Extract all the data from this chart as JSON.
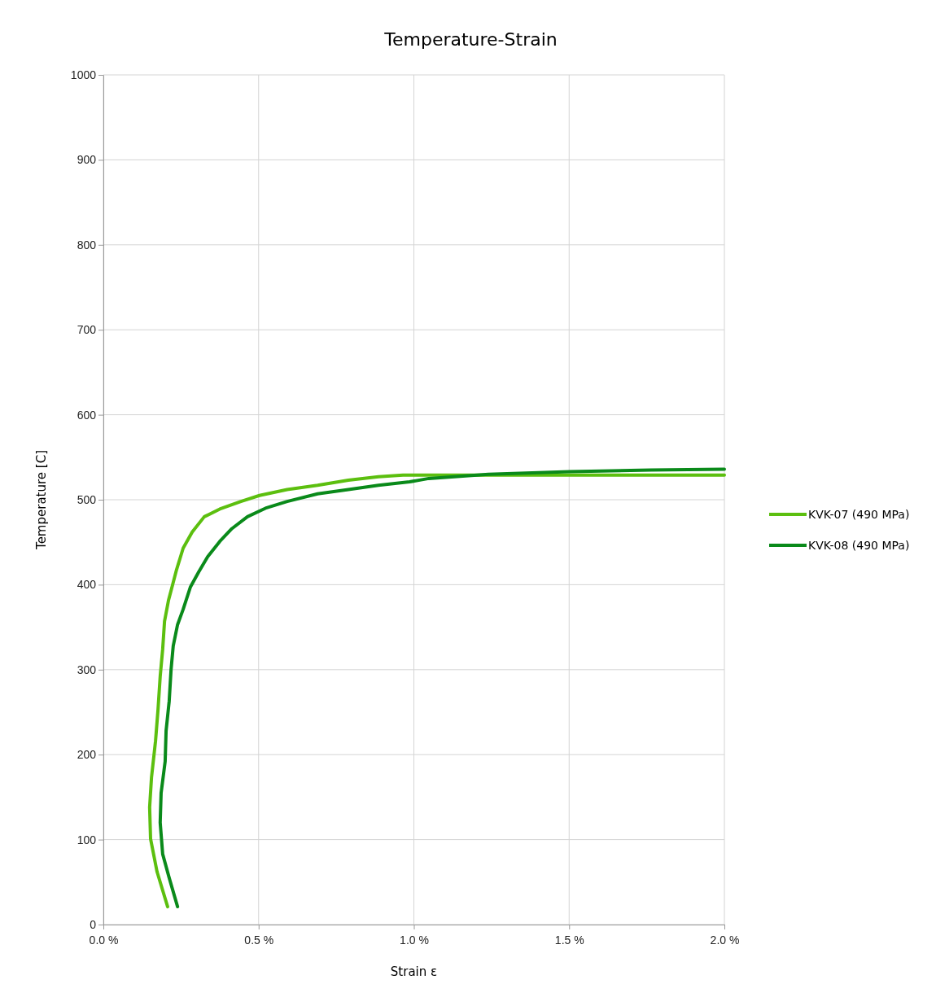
{
  "chart_data": {
    "type": "line",
    "title": "Temperature-Strain",
    "xlabel": "Strain ε",
    "ylabel": "Temperature [C]",
    "xlim": [
      0,
      2
    ],
    "ylim": [
      0,
      1000
    ],
    "xticks": [
      {
        "value": 0,
        "label": "0.0 %"
      },
      {
        "value": 0.5,
        "label": "0.5 %"
      },
      {
        "value": 1,
        "label": "1.0 %"
      },
      {
        "value": 1.5,
        "label": "1.5 %"
      },
      {
        "value": 2,
        "label": "2.0 %"
      }
    ],
    "yticks": [
      0,
      100,
      200,
      300,
      400,
      500,
      600,
      700,
      800,
      900,
      1000
    ],
    "grid": true,
    "legend": "right",
    "marker": "none",
    "line_style": "solid",
    "series": [
      {
        "name": "KVK-07 (490 MPa)",
        "color": "#5cbf0f",
        "x": [
          0.207,
          0.173,
          0.152,
          0.149,
          0.155,
          0.168,
          0.176,
          0.183,
          0.191,
          0.197,
          0.21,
          0.223,
          0.236,
          0.257,
          0.286,
          0.325,
          0.375,
          0.443,
          0.503,
          0.592,
          0.69,
          0.789,
          0.886,
          0.965,
          1.2,
          1.6,
          2.0
        ],
        "values": [
          21,
          62,
          101,
          138,
          173,
          216,
          253,
          292,
          324,
          357,
          382,
          400,
          418,
          443,
          462,
          480,
          489,
          498,
          505,
          512,
          517,
          523,
          527,
          529,
          529,
          529,
          529
        ]
      },
      {
        "name": "KVK-08 (490 MPa)",
        "color": "#0a8a1a",
        "x": [
          0.239,
          0.212,
          0.191,
          0.183,
          0.186,
          0.199,
          0.202,
          0.212,
          0.218,
          0.225,
          0.239,
          0.257,
          0.28,
          0.307,
          0.336,
          0.375,
          0.414,
          0.464,
          0.522,
          0.592,
          0.69,
          0.789,
          0.886,
          0.986,
          1.048,
          1.24,
          1.502,
          1.764,
          2.0
        ],
        "values": [
          21,
          55,
          83,
          120,
          155,
          192,
          228,
          263,
          300,
          328,
          353,
          371,
          397,
          415,
          433,
          451,
          466,
          480,
          490,
          498,
          507,
          512,
          517,
          521,
          525,
          530,
          533,
          535,
          536
        ]
      }
    ]
  }
}
